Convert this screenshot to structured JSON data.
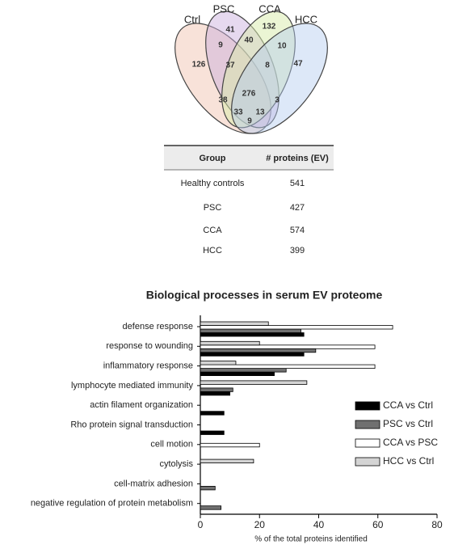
{
  "venn": {
    "sets": [
      "Ctrl",
      "PSC",
      "CCA",
      "HCC"
    ],
    "regions": [
      41,
      132,
      9,
      40,
      10,
      126,
      37,
      8,
      47,
      276,
      38,
      3,
      33,
      13,
      9
    ]
  },
  "table": {
    "header": [
      "Group",
      "# proteins (EV)"
    ],
    "rows": [
      [
        "Healthy controls",
        541
      ],
      [
        "PSC",
        427
      ],
      [
        "CCA",
        574
      ],
      [
        "HCC",
        399
      ]
    ]
  },
  "chart_data": {
    "type": "barh",
    "title": "Biological processes in serum EV proteome",
    "x_label": "% of the total proteins identified",
    "categories": [
      "defense response",
      "response to wounding",
      "inflammatory response",
      "lymphocyte mediated immunity",
      "actin filament organization",
      "Rho protein signal transduction",
      "cell motion",
      "cytolysis",
      "cell-matrix adhesion",
      "negative regulation of protein metabolism"
    ],
    "series": [
      {
        "name": "CCA vs Ctrl",
        "color": "#000000",
        "values": [
          35,
          35,
          25,
          10,
          8,
          8,
          null,
          null,
          null,
          null
        ]
      },
      {
        "name": "PSC vs Ctrl",
        "color": "#707070",
        "values": [
          34,
          39,
          29,
          11,
          null,
          null,
          null,
          null,
          5,
          7
        ]
      },
      {
        "name": "CCA vs PSC",
        "color": "#ffffff",
        "values": [
          65,
          59,
          59,
          null,
          null,
          null,
          20,
          null,
          null,
          null
        ]
      },
      {
        "name": "HCC vs Ctrl",
        "color": "#d4d4d4",
        "values": [
          23,
          20,
          12,
          36,
          null,
          null,
          null,
          18,
          null,
          null
        ]
      }
    ],
    "xlim": [
      0,
      80
    ],
    "xticks": [
      0,
      20,
      40,
      60,
      80
    ],
    "legend": "right"
  }
}
